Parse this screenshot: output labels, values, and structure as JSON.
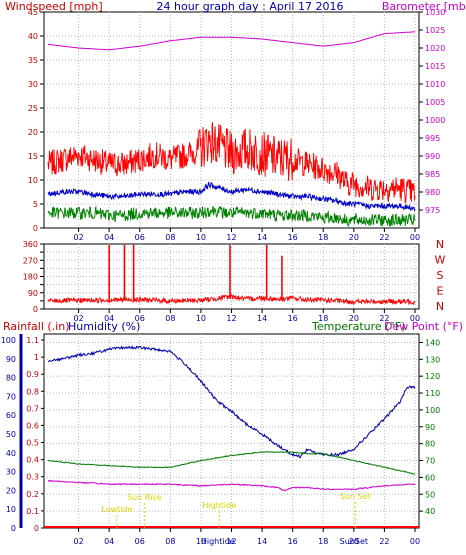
{
  "colors": {
    "wind_gust": "#ff0000",
    "wind_avg": "#0000cc",
    "wind_min": "#008000",
    "barometer": "#cc00cc",
    "direction": "#ff0000",
    "rainfall": "#cc0000",
    "humidity": "#0000aa",
    "temperature": "#007700",
    "dewpoint": "#cc00cc",
    "marker": "#d8d800",
    "grid": "#b8b8b8"
  },
  "chart_data": [
    {
      "type": "line",
      "title": "24 hour graph day : April 17 2016",
      "ylabel": "Windspeed [mph]",
      "y2label": "Barometer [mb]",
      "x_ticks": [
        "02",
        "04",
        "06",
        "08",
        "10",
        "12",
        "14",
        "16",
        "18",
        "20",
        "22",
        "00"
      ],
      "ylim": [
        0,
        45
      ],
      "y_ticks": [
        "0",
        "5",
        "10",
        "15",
        "20",
        "25",
        "30",
        "35",
        "40",
        "45"
      ],
      "y2lim": [
        970,
        1030
      ],
      "y2_ticks": [
        "975",
        "980",
        "985",
        "990",
        "995",
        "1000",
        "1005",
        "1010",
        "1015",
        "1020",
        "1025",
        "1030"
      ],
      "grid": true,
      "series": [
        {
          "key": "gust",
          "axis": "y",
          "x": [
            0,
            1,
            2,
            3,
            4,
            5,
            6,
            7,
            8,
            9,
            10,
            10.5,
            11,
            11.5,
            12,
            13,
            14,
            15,
            16,
            17,
            18,
            19,
            19.5,
            20,
            21,
            22,
            23,
            24
          ],
          "values": [
            13,
            14,
            15,
            14,
            13,
            13,
            14,
            15,
            14,
            15,
            16,
            18,
            17,
            16,
            15,
            16,
            15,
            14,
            14,
            13,
            12,
            11,
            9,
            9,
            8,
            8,
            8,
            7
          ]
        },
        {
          "key": "avg",
          "axis": "y",
          "x": [
            0,
            1,
            2,
            3,
            4,
            5,
            6,
            7,
            8,
            9,
            10,
            10.5,
            11,
            11.5,
            12,
            13,
            14,
            15,
            16,
            17,
            18,
            19,
            19.5,
            20,
            21,
            22,
            23,
            24
          ],
          "values": [
            7,
            7.5,
            7.5,
            7,
            6.5,
            6.5,
            7,
            7,
            7,
            7.5,
            7.5,
            9,
            8.5,
            8,
            7.5,
            8,
            7.5,
            7,
            6.5,
            6.5,
            6,
            5.5,
            5,
            5,
            4.5,
            4.5,
            4.5,
            4
          ]
        },
        {
          "key": "min",
          "axis": "y",
          "x": [
            0,
            1,
            2,
            3,
            4,
            5,
            6,
            7,
            8,
            9,
            10,
            10.5,
            11,
            11.5,
            12,
            13,
            14,
            15,
            16,
            17,
            18,
            19,
            19.5,
            20,
            21,
            22,
            23,
            24
          ],
          "values": [
            3,
            3,
            3,
            3,
            2.5,
            2.5,
            3,
            3,
            3,
            3,
            3,
            3.5,
            3.5,
            3,
            3,
            3,
            3,
            2.5,
            2.5,
            2.5,
            2,
            2,
            1.5,
            1.5,
            1.5,
            1.5,
            1.5,
            1.5
          ]
        },
        {
          "key": "barometer",
          "axis": "y2",
          "x": [
            0,
            2,
            4,
            6,
            8,
            10,
            12,
            14,
            16,
            18,
            20,
            22,
            24
          ],
          "values": [
            1021,
            1020,
            1019.5,
            1020.5,
            1022,
            1023,
            1023,
            1022.5,
            1021.5,
            1020.5,
            1021.5,
            1024,
            1024.5
          ]
        }
      ]
    },
    {
      "type": "line",
      "ylabel_letters": [
        "N",
        "W",
        "S",
        "E",
        "N"
      ],
      "ylim": [
        0,
        360
      ],
      "y_ticks": [
        "0",
        "45",
        "90",
        "135",
        "180",
        "225",
        "270",
        "315",
        "360"
      ],
      "x_ticks": [
        "02",
        "04",
        "06",
        "08",
        "10",
        "12",
        "14",
        "16",
        "18",
        "20",
        "22",
        "00"
      ],
      "series": [
        {
          "key": "direction",
          "x": [
            0,
            2,
            4,
            6,
            8,
            10,
            11,
            12,
            13,
            14,
            15,
            16,
            17,
            18,
            20,
            22,
            24
          ],
          "values": [
            45,
            48,
            50,
            52,
            45,
            48,
            58,
            70,
            55,
            62,
            55,
            60,
            50,
            50,
            40,
            42,
            40
          ],
          "spikes_x": [
            4.0,
            5.0,
            5.6,
            11.9,
            14.3,
            15.3
          ],
          "spikes_values": [
            355,
            355,
            355,
            355,
            355,
            295
          ]
        }
      ]
    },
    {
      "type": "line",
      "ylabel_left": "Rainfall (.in)",
      "ylabel_left2": "Humidity (%)",
      "ylabel_right": "Temperature (°F)",
      "ylabel_right2": "Dew Point (°F)",
      "rain_ylim": [
        0,
        1.1
      ],
      "rain_ticks": [
        "0",
        "0.1",
        "0.2",
        "0.3",
        "0.4",
        "0.5",
        "0.6",
        "0.7",
        "0.8",
        "0.9",
        "1",
        "1.1"
      ],
      "humidity_ylim": [
        0,
        100
      ],
      "humidity_ticks": [
        "0",
        "10",
        "20",
        "30",
        "40",
        "50",
        "60",
        "70",
        "80",
        "90",
        "100"
      ],
      "temp_ylim": [
        30,
        145
      ],
      "temp_ticks": [
        "40",
        "50",
        "60",
        "70",
        "80",
        "90",
        "100",
        "110",
        "120",
        "130",
        "140"
      ],
      "x_ticks": [
        "02",
        "04",
        "06",
        "08",
        "10",
        "12",
        "14",
        "16",
        "18",
        "20",
        "22",
        "00"
      ],
      "series": [
        {
          "key": "humidity",
          "axis": "humidity",
          "x": [
            0,
            1,
            2,
            3,
            4,
            5,
            6,
            7,
            8,
            9,
            10,
            11,
            12,
            13,
            14,
            15,
            16,
            16.5,
            17,
            17.5,
            18,
            19,
            20,
            21,
            22,
            23,
            23.5,
            24
          ],
          "values": [
            89,
            90,
            92,
            93,
            95,
            96,
            96,
            95,
            94,
            87,
            78,
            68,
            62,
            55,
            50,
            44,
            39,
            38,
            42,
            40,
            39,
            39,
            42,
            50,
            58,
            67,
            75,
            75
          ]
        },
        {
          "key": "temperature",
          "axis": "temp",
          "x": [
            0,
            2,
            4,
            6,
            8,
            9,
            10,
            12,
            14,
            16,
            17,
            18,
            19,
            20,
            22,
            24
          ],
          "values": [
            70,
            68,
            67,
            66,
            66,
            68,
            70,
            73,
            75,
            75,
            74,
            74,
            72,
            70,
            66,
            62
          ]
        },
        {
          "key": "dewpoint",
          "axis": "temp",
          "x": [
            0,
            2,
            4,
            6,
            8,
            10,
            12,
            14,
            15,
            15.5,
            16,
            17,
            18,
            20,
            22,
            24
          ],
          "values": [
            58,
            57,
            56,
            56,
            56,
            55,
            56,
            55,
            54,
            52,
            54,
            54,
            53,
            53,
            55,
            56
          ]
        },
        {
          "key": "rainfall",
          "axis": "rain",
          "x": [
            0,
            24
          ],
          "values": [
            0,
            0
          ]
        }
      ],
      "annotations": [
        {
          "text": "Lowtide",
          "hour": 4.5
        },
        {
          "text": "Sun Rise",
          "hour": 6.3
        },
        {
          "text": "Hightide",
          "hour": 11.2
        },
        {
          "text": "Sun Set",
          "hour": 20.1
        }
      ],
      "bottom_labels": [
        {
          "text": "Hightide",
          "hour": 11.1
        },
        {
          "text": "SunSet",
          "hour": 20.0
        }
      ]
    }
  ]
}
